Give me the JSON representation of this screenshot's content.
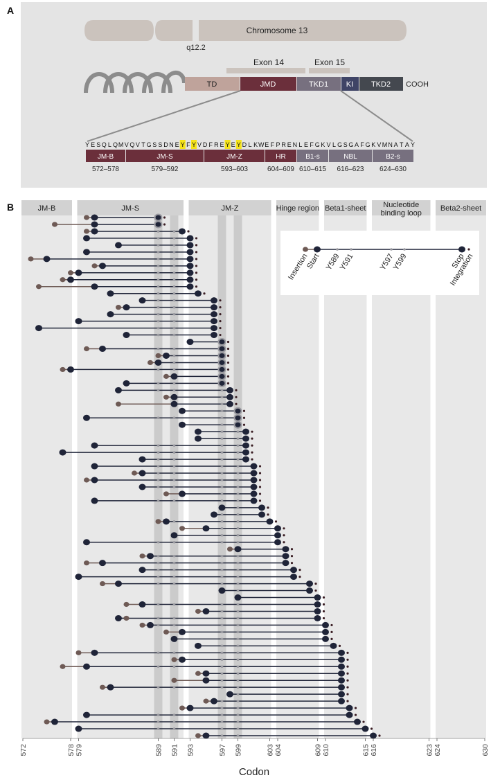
{
  "panel_a": {
    "label": "A",
    "chromosome": "Chromosome 13",
    "band": "q12.2",
    "exon14": "Exon 14",
    "exon15": "Exon 15",
    "cooh": "COOH",
    "domains": [
      {
        "label": "TD",
        "color": "#bfa39b"
      },
      {
        "label": "JMD",
        "color": "#6b2f3b"
      },
      {
        "label": "TKD1",
        "color": "#77707f"
      },
      {
        "label": "KI",
        "color": "#3f4466"
      },
      {
        "label": "TKD2",
        "color": "#44484f"
      }
    ],
    "sequence": [
      "Y",
      "E",
      "S",
      "Q",
      "L",
      "Q",
      "M",
      "V",
      "Q",
      "V",
      "T",
      "G",
      "S",
      "S",
      "D",
      "N",
      "E",
      "Y",
      "F",
      "Y",
      "V",
      "D",
      "F",
      "R",
      "E",
      "Y",
      "E",
      "Y",
      "D",
      "L",
      "K",
      "W",
      "E",
      "F",
      "P",
      "R",
      "E",
      "N",
      "L",
      "E",
      "F",
      "G",
      "K",
      "V",
      "L",
      "G",
      "S",
      "G",
      "A",
      "F",
      "G",
      "K",
      "V",
      "M",
      "N",
      "A",
      "T",
      "A",
      "Y"
    ],
    "highlight_indices": [
      17,
      19,
      25,
      27
    ],
    "highlight_color": "#f5e31a",
    "subdomains": [
      {
        "label": "JM-B",
        "range": "572–578",
        "color": "#6b2f3b"
      },
      {
        "label": "JM-S",
        "range": "579–592",
        "color": "#6b2f3b"
      },
      {
        "label": "JM-Z",
        "range": "593–603",
        "color": "#6b2f3b"
      },
      {
        "label": "HR",
        "range": "604–609",
        "color": "#6b2f3b"
      },
      {
        "label": "B1-s",
        "range": "610–615",
        "color": "#77707f"
      },
      {
        "label": "NBL",
        "range": "616–623",
        "color": "#77707f"
      },
      {
        "label": "B2-s",
        "range": "624–630",
        "color": "#77707f"
      }
    ]
  },
  "panel_b": {
    "label": "B",
    "regions": [
      {
        "label": "JM-B",
        "from": 572,
        "to": 578
      },
      {
        "label": "JM-S",
        "from": 579,
        "to": 592
      },
      {
        "label": "JM-Z",
        "from": 593,
        "to": 603
      },
      {
        "label": "Hinge region",
        "from": 604,
        "to": 609
      },
      {
        "label": "Beta1-sheet",
        "from": 610,
        "to": 615
      },
      {
        "label": "Nucleotide\nbinding loop",
        "from": 616,
        "to": 623
      },
      {
        "label": "Beta2-sheet",
        "from": 624,
        "to": 630
      }
    ],
    "legend": [
      "Insertion",
      "Start",
      "Y589",
      "Y591",
      "Y597",
      "Y599",
      "Stop",
      "Integration"
    ]
  },
  "chart_data": {
    "type": "lollipop",
    "xlabel": "Codon",
    "xlim": [
      572,
      630
    ],
    "xticks": [
      572,
      578,
      579,
      589,
      591,
      593,
      597,
      599,
      603,
      604,
      609,
      610,
      615,
      616,
      623,
      624,
      630
    ],
    "highlight_codons": [
      589,
      591,
      597,
      599
    ],
    "colors": {
      "start": "#1f2438",
      "insertion": "#6e5a55",
      "stop_dot": "#3a1e24",
      "tyrosine": "#9a9aa0"
    },
    "rows": [
      {
        "start": 581,
        "end": 589,
        "ins": 580
      },
      {
        "start": 581,
        "end": 589,
        "ins": 576
      },
      {
        "start": 581,
        "end": 592,
        "ins": 580
      },
      {
        "start": 580,
        "end": 593
      },
      {
        "start": 584,
        "end": 593
      },
      {
        "start": 580,
        "end": 593
      },
      {
        "start": 575,
        "end": 593,
        "ins": 573
      },
      {
        "start": 582,
        "end": 593,
        "ins": 581
      },
      {
        "start": 579,
        "end": 593,
        "ins": 578
      },
      {
        "start": 578,
        "end": 593,
        "ins": 577
      },
      {
        "start": 581,
        "end": 593,
        "ins": 574
      },
      {
        "start": 583,
        "end": 594
      },
      {
        "start": 587,
        "end": 596
      },
      {
        "start": 585,
        "end": 596,
        "ins": 584
      },
      {
        "start": 583,
        "end": 596
      },
      {
        "start": 579,
        "end": 596
      },
      {
        "start": 574,
        "end": 596
      },
      {
        "start": 585,
        "end": 596
      },
      {
        "start": 593,
        "end": 597
      },
      {
        "start": 582,
        "end": 597,
        "ins": 580
      },
      {
        "start": 590,
        "end": 597,
        "ins": 589
      },
      {
        "start": 589,
        "end": 597,
        "ins": 588
      },
      {
        "start": 578,
        "end": 597,
        "ins": 577
      },
      {
        "start": 591,
        "end": 597,
        "ins": 590
      },
      {
        "start": 585,
        "end": 597
      },
      {
        "start": 584,
        "end": 598
      },
      {
        "start": 591,
        "end": 598,
        "ins": 590
      },
      {
        "start": 591,
        "end": 598,
        "ins": 584
      },
      {
        "start": 592,
        "end": 599
      },
      {
        "start": 580,
        "end": 599
      },
      {
        "start": 592,
        "end": 599
      },
      {
        "start": 594,
        "end": 600
      },
      {
        "start": 594,
        "end": 600
      },
      {
        "start": 581,
        "end": 600
      },
      {
        "start": 577,
        "end": 600
      },
      {
        "start": 587,
        "end": 600
      },
      {
        "start": 581,
        "end": 601
      },
      {
        "start": 587,
        "end": 601,
        "ins": 586
      },
      {
        "start": 581,
        "end": 601,
        "ins": 580
      },
      {
        "start": 587,
        "end": 601
      },
      {
        "start": 592,
        "end": 601,
        "ins": 590
      },
      {
        "start": 581,
        "end": 601
      },
      {
        "start": 597,
        "end": 602
      },
      {
        "start": 596,
        "end": 602
      },
      {
        "start": 590,
        "end": 603,
        "ins": 589
      },
      {
        "start": 595,
        "end": 604,
        "ins": 592
      },
      {
        "start": 591,
        "end": 604
      },
      {
        "start": 580,
        "end": 604
      },
      {
        "start": 599,
        "end": 605,
        "ins": 598
      },
      {
        "start": 588,
        "end": 605,
        "ins": 587
      },
      {
        "start": 582,
        "end": 605,
        "ins": 580
      },
      {
        "start": 587,
        "end": 606
      },
      {
        "start": 579,
        "end": 606
      },
      {
        "start": 584,
        "end": 608,
        "ins": 582
      },
      {
        "start": 597,
        "end": 608
      },
      {
        "start": 599,
        "end": 609
      },
      {
        "start": 587,
        "end": 609,
        "ins": 585
      },
      {
        "start": 595,
        "end": 609,
        "ins": 594
      },
      {
        "start": 584,
        "end": 609,
        "ins": 585
      },
      {
        "start": 588,
        "end": 610,
        "ins": 587
      },
      {
        "start": 592,
        "end": 610,
        "ins": 590
      },
      {
        "start": 591,
        "end": 610
      },
      {
        "start": 594,
        "end": 611
      },
      {
        "start": 581,
        "end": 612,
        "ins": 579
      },
      {
        "start": 592,
        "end": 612,
        "ins": 591
      },
      {
        "start": 580,
        "end": 612,
        "ins": 577
      },
      {
        "start": 595,
        "end": 612,
        "ins": 594
      },
      {
        "start": 595,
        "end": 612,
        "ins": 591
      },
      {
        "start": 583,
        "end": 612,
        "ins": 582
      },
      {
        "start": 598,
        "end": 612
      },
      {
        "start": 596,
        "end": 612,
        "ins": 595
      },
      {
        "start": 593,
        "end": 613,
        "ins": 592
      },
      {
        "start": 580,
        "end": 613
      },
      {
        "start": 576,
        "end": 614,
        "ins": 575
      },
      {
        "start": 579,
        "end": 615
      },
      {
        "start": 595,
        "end": 616,
        "ins": 594
      }
    ]
  }
}
